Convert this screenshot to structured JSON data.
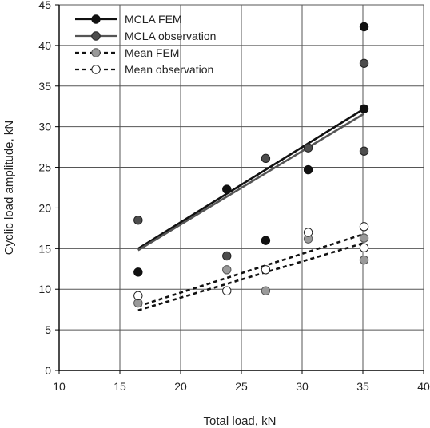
{
  "chart_data": {
    "type": "scatter",
    "xlabel": "Total load, kN",
    "ylabel": "Cyclic load amplitude, kN",
    "xlim": [
      10,
      40
    ],
    "ylim": [
      0,
      45
    ],
    "xticks": [
      10,
      15,
      20,
      25,
      30,
      35,
      40
    ],
    "yticks": [
      0,
      5,
      10,
      15,
      20,
      25,
      30,
      35,
      40,
      45
    ],
    "grid": true,
    "legend_position": "top-left",
    "series": [
      {
        "name": "MCLA FEM",
        "marker_color": "#111111",
        "marker_edge": "#111111",
        "line_color": "#111111",
        "line_style": "solid",
        "points": [
          [
            16.5,
            12.1
          ],
          [
            23.8,
            22.3
          ],
          [
            27.0,
            16.0
          ],
          [
            30.5,
            24.7
          ],
          [
            35.1,
            32.2
          ],
          [
            35.1,
            42.3
          ]
        ],
        "trend": [
          [
            16.5,
            15.0
          ],
          [
            35.1,
            32.2
          ]
        ]
      },
      {
        "name": "MCLA observation",
        "marker_color": "#4d4d4d",
        "marker_edge": "#222222",
        "line_color": "#555555",
        "line_style": "solid",
        "points": [
          [
            16.5,
            18.5
          ],
          [
            23.8,
            14.1
          ],
          [
            27.0,
            26.1
          ],
          [
            30.5,
            27.4
          ],
          [
            35.1,
            27.0
          ],
          [
            35.1,
            37.8
          ]
        ],
        "trend": [
          [
            16.5,
            14.8
          ],
          [
            35.1,
            31.6
          ]
        ]
      },
      {
        "name": "Mean FEM",
        "marker_color": "#9a9a9a",
        "marker_edge": "#555555",
        "line_color": "#111111",
        "line_style": "dashed",
        "points": [
          [
            16.5,
            8.3
          ],
          [
            23.8,
            12.4
          ],
          [
            27.0,
            9.8
          ],
          [
            30.5,
            16.2
          ],
          [
            35.1,
            13.6
          ],
          [
            35.1,
            16.3
          ]
        ],
        "trend": [
          [
            16.5,
            7.4
          ],
          [
            35.1,
            15.7
          ]
        ]
      },
      {
        "name": "Mean observation",
        "marker_color": "#ffffff",
        "marker_edge": "#222222",
        "line_color": "#111111",
        "line_style": "dashed",
        "points": [
          [
            16.5,
            9.2
          ],
          [
            23.8,
            9.8
          ],
          [
            27.0,
            12.4
          ],
          [
            30.5,
            17.0
          ],
          [
            35.1,
            17.7
          ],
          [
            35.1,
            15.1
          ]
        ],
        "trend": [
          [
            16.5,
            7.9
          ],
          [
            35.1,
            16.8
          ]
        ]
      }
    ]
  }
}
